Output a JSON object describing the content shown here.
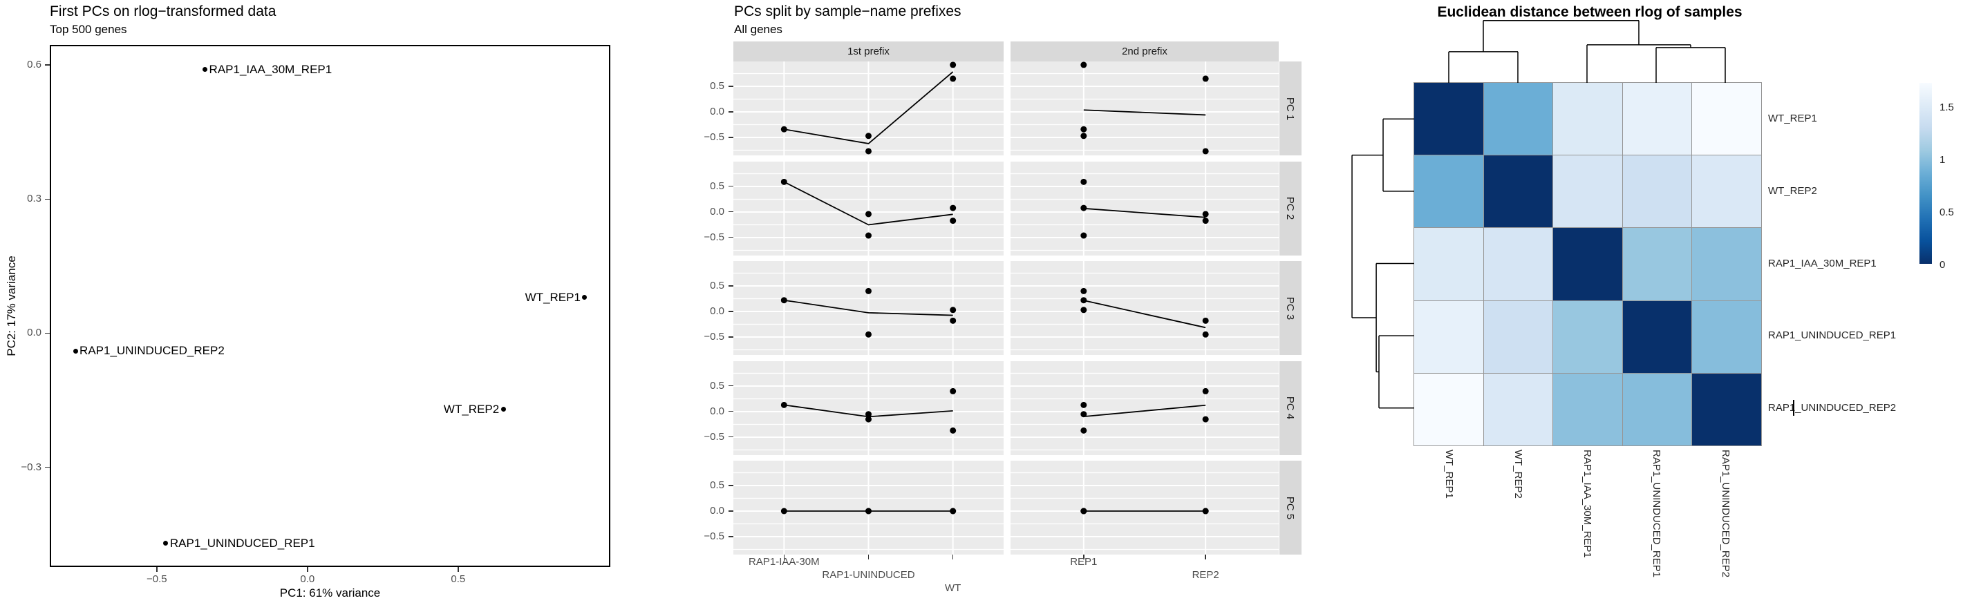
{
  "chart_data": [
    {
      "type": "scatter",
      "title": "First PCs on rlog−transformed data",
      "subtitle": "Top 500 genes",
      "xlabel": "PC1: 61% variance",
      "ylabel": "PC2: 17% variance",
      "xlim": [
        -0.855,
        1.005
      ],
      "ylim": [
        -0.523,
        0.645
      ],
      "x_ticks": [
        {
          "label": "−0.5",
          "value": -0.5
        },
        {
          "label": "0.0",
          "value": 0.0
        },
        {
          "label": "0.5",
          "value": 0.5
        }
      ],
      "y_ticks": [
        {
          "label": "0.6",
          "value": 0.6
        },
        {
          "label": "0.3",
          "value": 0.3
        },
        {
          "label": "0.0",
          "value": 0.0
        },
        {
          "label": "−0.3",
          "value": -0.3
        }
      ],
      "grid": false,
      "points": [
        {
          "label": "RAP1_IAA_30M_REP1",
          "x": -0.34,
          "y": 0.59,
          "label_side": "right"
        },
        {
          "label": "RAP1_UNINDUCED_REP2",
          "x": -0.77,
          "y": -0.04,
          "label_side": "right"
        },
        {
          "label": "RAP1_UNINDUCED_REP1",
          "x": -0.47,
          "y": -0.47,
          "label_side": "right"
        },
        {
          "label": "WT_REP1",
          "x": 0.92,
          "y": 0.08,
          "label_side": "left"
        },
        {
          "label": "WT_REP2",
          "x": 0.65,
          "y": -0.17,
          "label_side": "left"
        }
      ]
    },
    {
      "type": "line",
      "title": "PCs split by sample−name prefixes",
      "subtitle": "All genes",
      "col_facets": [
        {
          "label": "1st prefix",
          "categories": [
            "RAP1-IAA-30M",
            "RAP1-UNINDUCED",
            "WT"
          ]
        },
        {
          "label": "2nd prefix",
          "categories": [
            "REP1",
            "REP2"
          ]
        }
      ],
      "row_facets": [
        "PC 1",
        "PC 2",
        "PC 3",
        "PC 4",
        "PC 5"
      ],
      "y_ticks": [
        {
          "label": "0.5",
          "value": 0.5
        },
        {
          "label": "0.0",
          "value": 0.0
        },
        {
          "label": "−0.5",
          "value": -0.5
        }
      ],
      "y_minor": [
        0.75,
        0.25,
        -0.25,
        -0.75
      ],
      "ylim": [
        -0.875,
        1.01
      ],
      "legend_position": "none",
      "samples": [
        {
          "name": "RAP1_IAA_30M_REP1",
          "prefix1": "RAP1-IAA-30M",
          "prefix2": "REP1",
          "pcs": [
            -0.34,
            0.59,
            0.22,
            0.13,
            0.0
          ]
        },
        {
          "name": "RAP1_UNINDUCED_REP1",
          "prefix1": "RAP1-UNINDUCED",
          "prefix2": "REP1",
          "pcs": [
            -0.47,
            -0.46,
            0.4,
            -0.05,
            0.0
          ]
        },
        {
          "name": "RAP1_UNINDUCED_REP2",
          "prefix1": "RAP1-UNINDUCED",
          "prefix2": "REP2",
          "pcs": [
            -0.77,
            -0.04,
            -0.45,
            -0.15,
            0.0
          ]
        },
        {
          "name": "WT_REP1",
          "prefix1": "WT",
          "prefix2": "REP1",
          "pcs": [
            0.92,
            0.08,
            0.03,
            -0.37,
            0.0
          ]
        },
        {
          "name": "WT_REP2",
          "prefix1": "WT",
          "prefix2": "REP2",
          "pcs": [
            0.65,
            -0.17,
            -0.18,
            0.4,
            0.0
          ]
        }
      ]
    },
    {
      "type": "heatmap",
      "title": "Euclidean distance between rlog of samples",
      "labels": [
        "WT_REP1",
        "WT_REP2",
        "RAP1_IAA_30M_REP1",
        "RAP1_UNINDUCED_REP1",
        "RAP1_UNINDUCED_REP2"
      ],
      "matrix": [
        [
          0,
          0.86,
          1.49,
          1.58,
          1.72
        ],
        [
          0.86,
          0,
          1.43,
          1.36,
          1.47
        ],
        [
          1.49,
          1.43,
          0,
          1.05,
          1.0
        ],
        [
          1.58,
          1.36,
          1.05,
          0,
          0.975
        ],
        [
          1.72,
          1.47,
          1.0,
          0.975,
          0
        ]
      ],
      "vmax": 1.72,
      "colormap_low_to_high": [
        "#08306B",
        "#08519C",
        "#2171B5",
        "#4292C6",
        "#6BAED6",
        "#9ECAE1",
        "#C6DBEF",
        "#DEEBF7",
        "#F7FBFF"
      ],
      "legend_ticks": [
        {
          "label": "1.5",
          "value": 1.5
        },
        {
          "label": "1",
          "value": 1.0
        },
        {
          "label": "0.5",
          "value": 0.5
        },
        {
          "label": "0",
          "value": 0.0
        }
      ],
      "dendrogram_merges": [
        {
          "a": {
            "type": "leaf",
            "index": 0
          },
          "b": {
            "type": "leaf",
            "index": 1
          },
          "height": 0.86
        },
        {
          "a": {
            "type": "leaf",
            "index": 3
          },
          "b": {
            "type": "leaf",
            "index": 4
          },
          "height": 0.975
        },
        {
          "a": {
            "type": "leaf",
            "index": 2
          },
          "b": {
            "type": "merge",
            "index": 1
          },
          "height": 1.05
        },
        {
          "a": {
            "type": "merge",
            "index": 0
          },
          "b": {
            "type": "merge",
            "index": 2
          },
          "height": 1.72
        }
      ]
    }
  ]
}
